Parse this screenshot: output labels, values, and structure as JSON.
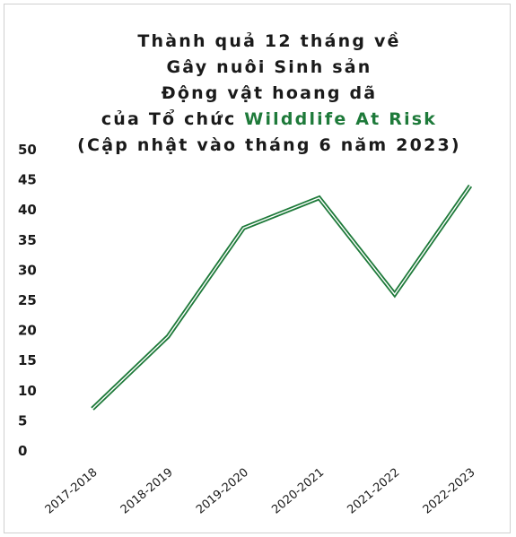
{
  "chart_data": {
    "type": "line",
    "title_lines": [
      "Thành quả 12 tháng về",
      "Gây nuôi Sinh sản",
      "Động vật hoang dã",
      "của Tổ chức "
    ],
    "title_brand": "Wilddlife At Risk",
    "title_last_line": "(Cập nhật vào tháng 6 năm 2023)",
    "categories": [
      "2017-2018",
      "2018-2019",
      "2019-2020",
      "2020-2021",
      "2021-2022",
      "2022-2023"
    ],
    "values": [
      7,
      19,
      37,
      42,
      26,
      44
    ],
    "ylim": [
      0,
      50
    ],
    "yticks": [
      0,
      5,
      10,
      15,
      20,
      25,
      30,
      35,
      40,
      45,
      50
    ],
    "grid": false,
    "line_color": "#1e7a3a",
    "brand_color": "#1e7a3a"
  }
}
